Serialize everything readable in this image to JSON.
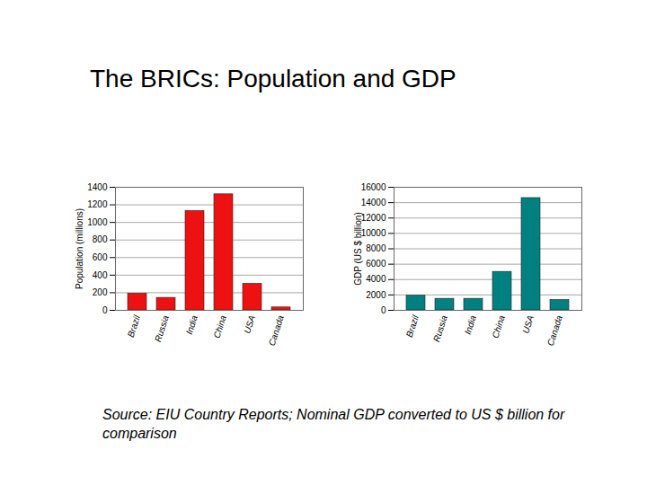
{
  "title": "The BRICs: Population and GDP",
  "caption": "Source: EIU Country Reports; Nominal GDP converted to US $ billion for comparison",
  "chart_data": [
    {
      "type": "bar",
      "y_label": "Population (millions)",
      "categories": [
        "Brazil",
        "Russia",
        "India",
        "China",
        "USA",
        "Canada"
      ],
      "values": [
        190,
        142,
        1130,
        1320,
        302,
        33
      ],
      "color": "#ee1111",
      "ylim": [
        0,
        1400
      ],
      "yticks": [
        0,
        200,
        400,
        600,
        800,
        1000,
        1200,
        1400
      ],
      "grid": true
    },
    {
      "type": "bar",
      "y_label": "GDP (US $ billion)",
      "categories": [
        "Brazil",
        "Russia",
        "India",
        "China",
        "USA",
        "Canada"
      ],
      "values": [
        1900,
        1500,
        1500,
        5000,
        14600,
        1350
      ],
      "color": "#008080",
      "ylim": [
        0,
        16000
      ],
      "yticks": [
        0,
        2000,
        4000,
        6000,
        8000,
        10000,
        12000,
        14000,
        16000
      ],
      "grid": true
    }
  ]
}
